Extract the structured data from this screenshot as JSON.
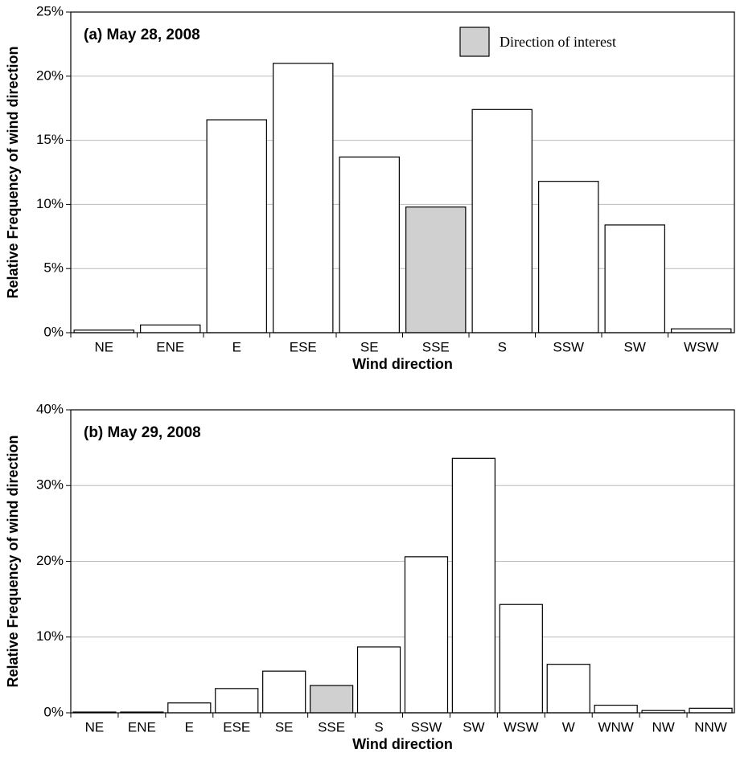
{
  "chart_data": [
    {
      "type": "bar",
      "title": "(a) May 28, 2008",
      "x_label": "Wind direction",
      "y_label": "Relative Frequency of wind direction",
      "categories": [
        "NE",
        "ENE",
        "E",
        "ESE",
        "SE",
        "SSE",
        "S",
        "SSW",
        "SW",
        "WSW"
      ],
      "values": [
        0.2,
        0.6,
        16.6,
        21.0,
        13.7,
        9.8,
        17.4,
        11.8,
        8.4,
        0.3
      ],
      "colors": [
        "#ffffff",
        "#ffffff",
        "#ffffff",
        "#ffffff",
        "#ffffff",
        "#d0d0d0",
        "#ffffff",
        "#ffffff",
        "#ffffff",
        "#ffffff"
      ],
      "legend": {
        "label": "Direction of interest",
        "color": "#d0d0d0"
      },
      "ylim": [
        0,
        25
      ],
      "yticks": [
        {
          "value": 0,
          "label": "0%"
        },
        {
          "value": 5,
          "label": "5%"
        },
        {
          "value": 10,
          "label": "10%"
        },
        {
          "value": 15,
          "label": "15%"
        },
        {
          "value": 20,
          "label": "20%"
        },
        {
          "value": 25,
          "label": "25%"
        }
      ],
      "grid": true
    },
    {
      "type": "bar",
      "title": "(b) May 29, 2008",
      "x_label": "Wind direction",
      "y_label": "Relative Frequency of wind direction",
      "categories": [
        "NE",
        "ENE",
        "E",
        "ESE",
        "SE",
        "SSE",
        "S",
        "SSW",
        "SW",
        "WSW",
        "W",
        "WNW",
        "NW",
        "NNW"
      ],
      "values": [
        0.1,
        0.1,
        1.3,
        3.2,
        5.5,
        3.6,
        8.7,
        20.6,
        33.6,
        14.3,
        6.4,
        1.0,
        0.3,
        0.6
      ],
      "colors": [
        "#ffffff",
        "#ffffff",
        "#ffffff",
        "#ffffff",
        "#ffffff",
        "#d0d0d0",
        "#ffffff",
        "#ffffff",
        "#ffffff",
        "#ffffff",
        "#ffffff",
        "#ffffff",
        "#ffffff",
        "#ffffff"
      ],
      "ylim": [
        0,
        40
      ],
      "yticks": [
        {
          "value": 0,
          "label": "0%"
        },
        {
          "value": 10,
          "label": "10%"
        },
        {
          "value": 20,
          "label": "20%"
        },
        {
          "value": 30,
          "label": "30%"
        },
        {
          "value": 40,
          "label": "40%"
        }
      ],
      "grid": true
    }
  ]
}
